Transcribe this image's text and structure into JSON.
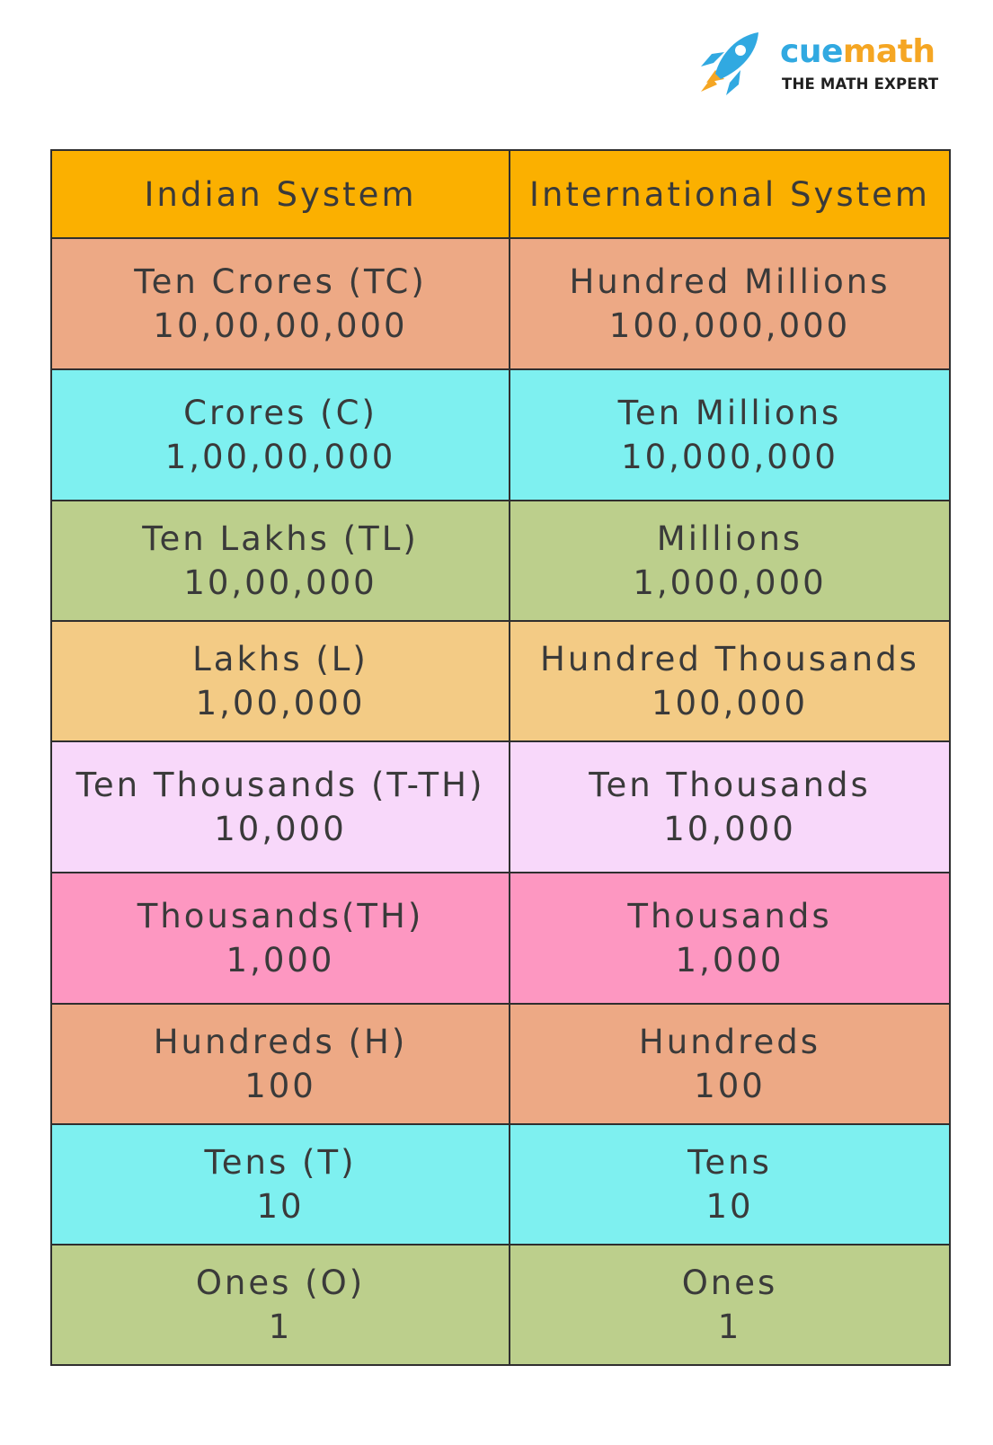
{
  "logo": {
    "brand_cue": "cue",
    "brand_math": "math",
    "tagline": "THE MATH EXPERT",
    "icon": "rocket-icon",
    "colors": {
      "cue": "#31a9e1",
      "math": "#f5a623",
      "rocket": "#31a9e1",
      "flame": "#f5a623"
    }
  },
  "table": {
    "headers": {
      "indian": "Indian System",
      "international": "International System"
    },
    "header_color": "#fbb000",
    "rows": [
      {
        "color": "#eda985",
        "indian_name": "Ten Crores (TC)",
        "indian_value": "10,00,00,000",
        "intl_name": "Hundred Millions",
        "intl_value": "100,000,000"
      },
      {
        "color": "#7ef0f0",
        "indian_name": "Crores (C)",
        "indian_value": "1,00,00,000",
        "intl_name": "Ten Millions",
        "intl_value": "10,000,000"
      },
      {
        "color": "#bccf8c",
        "indian_name": "Ten Lakhs (TL)",
        "indian_value": "10,00,000",
        "intl_name": "Millions",
        "intl_value": "1,000,000"
      },
      {
        "color": "#f3cb85",
        "indian_name": "Lakhs (L)",
        "indian_value": "1,00,000",
        "intl_name": "Hundred Thousands",
        "intl_value": "100,000"
      },
      {
        "color": "#f8d8fa",
        "indian_name": "Ten Thousands (T-TH)",
        "indian_value": "10,000",
        "intl_name": "Ten Thousands",
        "intl_value": "10,000"
      },
      {
        "color": "#fd97c1",
        "indian_name": "Thousands(TH)",
        "indian_value": "1,000",
        "intl_name": "Thousands",
        "intl_value": "1,000"
      },
      {
        "color": "#eda985",
        "indian_name": "Hundreds (H)",
        "indian_value": "100",
        "intl_name": "Hundreds",
        "intl_value": "100"
      },
      {
        "color": "#7ef0f0",
        "indian_name": "Tens (T)",
        "indian_value": "10",
        "intl_name": "Tens",
        "intl_value": "10"
      },
      {
        "color": "#bccf8c",
        "indian_name": "Ones (O)",
        "indian_value": "1",
        "intl_name": "Ones",
        "intl_value": "1"
      }
    ]
  }
}
